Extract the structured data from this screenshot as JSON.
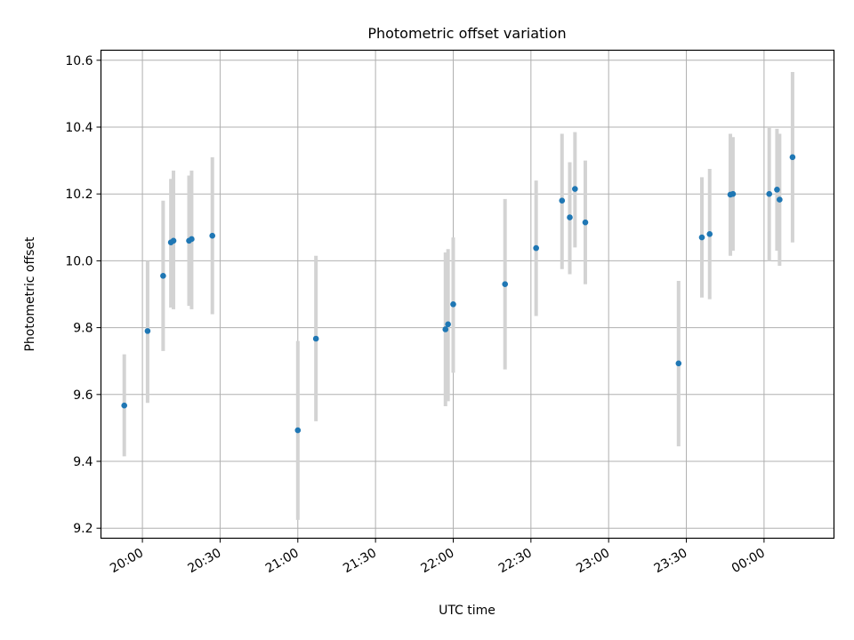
{
  "chart_data": {
    "type": "scatter",
    "title": "Photometric offset variation",
    "xlabel": "UTC time",
    "ylabel": "Photometric offset",
    "x_ticks": [
      "20:00",
      "20:30",
      "21:00",
      "21:30",
      "22:00",
      "22:30",
      "23:00",
      "23:30",
      "00:00"
    ],
    "y_ticks": [
      "9.2",
      "9.4",
      "9.6",
      "9.8",
      "10.0",
      "10.2",
      "10.4",
      "10.6"
    ],
    "xlim": [
      "19:44",
      "00:27"
    ],
    "ylim": [
      9.17,
      10.63
    ],
    "grid": true,
    "point_color": "#1f77b4",
    "errorbar_color": "#d3d3d3",
    "points": [
      {
        "x": "19:53",
        "y": 9.567,
        "low": 9.415,
        "high": 9.72
      },
      {
        "x": "20:02",
        "y": 9.79,
        "low": 9.575,
        "high": 10.0
      },
      {
        "x": "20:08",
        "y": 9.955,
        "low": 9.73,
        "high": 10.18
      },
      {
        "x": "20:11",
        "y": 10.055,
        "low": 9.86,
        "high": 10.245
      },
      {
        "x": "20:12",
        "y": 10.06,
        "low": 9.855,
        "high": 10.27
      },
      {
        "x": "20:18",
        "y": 10.06,
        "low": 9.865,
        "high": 10.255
      },
      {
        "x": "20:19",
        "y": 10.065,
        "low": 9.855,
        "high": 10.27
      },
      {
        "x": "20:27",
        "y": 10.075,
        "low": 9.84,
        "high": 10.31
      },
      {
        "x": "21:00",
        "y": 9.493,
        "low": 9.225,
        "high": 9.76
      },
      {
        "x": "21:07",
        "y": 9.767,
        "low": 9.52,
        "high": 10.015
      },
      {
        "x": "21:57",
        "y": 9.795,
        "low": 9.565,
        "high": 10.025
      },
      {
        "x": "21:58",
        "y": 9.81,
        "low": 9.58,
        "high": 10.035
      },
      {
        "x": "22:00",
        "y": 9.87,
        "low": 9.665,
        "high": 10.07
      },
      {
        "x": "22:20",
        "y": 9.93,
        "low": 9.675,
        "high": 10.185
      },
      {
        "x": "22:32",
        "y": 10.038,
        "low": 9.835,
        "high": 10.24
      },
      {
        "x": "22:42",
        "y": 10.18,
        "low": 9.975,
        "high": 10.38
      },
      {
        "x": "22:45",
        "y": 10.13,
        "low": 9.96,
        "high": 10.295
      },
      {
        "x": "22:47",
        "y": 10.215,
        "low": 10.04,
        "high": 10.385
      },
      {
        "x": "22:51",
        "y": 10.115,
        "low": 9.93,
        "high": 10.3
      },
      {
        "x": "23:27",
        "y": 9.693,
        "low": 9.445,
        "high": 9.94
      },
      {
        "x": "23:36",
        "y": 10.07,
        "low": 9.89,
        "high": 10.25
      },
      {
        "x": "23:39",
        "y": 10.08,
        "low": 9.885,
        "high": 10.275
      },
      {
        "x": "23:47",
        "y": 10.198,
        "low": 10.015,
        "high": 10.38
      },
      {
        "x": "23:48",
        "y": 10.2,
        "low": 10.03,
        "high": 10.37
      },
      {
        "x": "00:02",
        "y": 10.2,
        "low": 10.0,
        "high": 10.4
      },
      {
        "x": "00:05",
        "y": 10.213,
        "low": 10.03,
        "high": 10.395
      },
      {
        "x": "00:06",
        "y": 10.183,
        "low": 9.985,
        "high": 10.38
      },
      {
        "x": "00:11",
        "y": 10.31,
        "low": 10.055,
        "high": 10.565
      }
    ]
  }
}
